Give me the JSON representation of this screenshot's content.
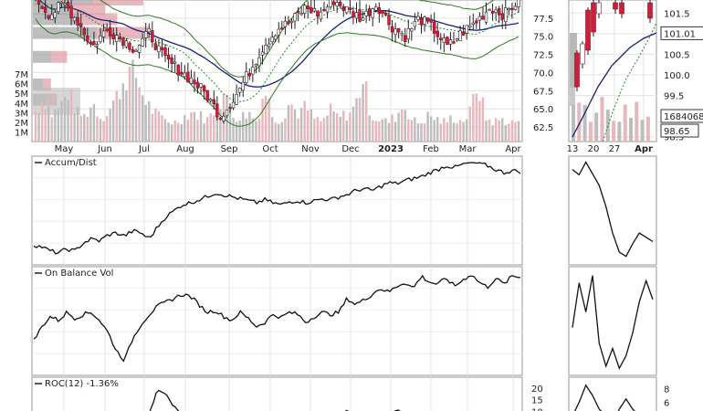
{
  "chart_data": [
    {
      "type": "candlestick",
      "panel": "price",
      "y_ticks": [
        62.5,
        65.0,
        67.5,
        70.0,
        72.5,
        75.0,
        77.5
      ],
      "ylim": [
        60.5,
        80.0
      ],
      "volume_ticks": [
        "1M",
        "2M",
        "3M",
        "4M",
        "5M",
        "6M",
        "7M"
      ],
      "volume_ylim": [
        0,
        9
      ],
      "x_ticks": [
        "May",
        "Jun",
        "Jul",
        "Aug",
        "Sep",
        "Oct",
        "Nov",
        "Dec",
        "2023",
        "Feb",
        "Mar",
        "Apr"
      ],
      "closes": [
        80.2,
        78.0,
        79.5,
        77.0,
        73.5,
        76.0,
        74.8,
        73.2,
        75.5,
        72.0,
        70.5,
        69.0,
        67.0,
        64.0,
        66.5,
        70.0,
        73.5,
        76.0,
        77.0,
        79.0,
        78.0,
        80.0,
        78.5,
        77.5,
        79.5,
        76.5,
        75.0,
        77.5,
        76.0,
        73.5,
        75.5,
        77.0,
        79.0,
        78.0,
        80.0
      ],
      "volume_millions": [
        3.2,
        4.5,
        2.8,
        3.6,
        5.2,
        3.0,
        2.6,
        4.0,
        2.4,
        3.3,
        4.8,
        6.8,
        7.5,
        5.0,
        3.5,
        2.6,
        2.2,
        2.0,
        2.5,
        3.1,
        2.7,
        2.3,
        3.4,
        4.9,
        2.8,
        2.5,
        3.0,
        2.1,
        5.5,
        2.6,
        2.2,
        4.1,
        2.9,
        3.6,
        2.4,
        2.0,
        3.2,
        2.5,
        2.8,
        3.5,
        6.6,
        2.7,
        2.3,
        2.0,
        2.6,
        3.8,
        2.2,
        1.9,
        2.7,
        2.3,
        2.0,
        2.5,
        2.1,
        2.8,
        6.1,
        2.4,
        2.0,
        2.3,
        1.9,
        2.2
      ],
      "volume_by_price_millions": [
        5.5,
        3.6,
        4.2,
        5.8,
        1.7,
        0.9,
        1.2
      ]
    },
    {
      "type": "candlestick",
      "panel": "price-detail",
      "y_ticks": [
        "101.5",
        "101.01",
        "101.0",
        "100.5",
        "100.0",
        "99.5",
        "98.65",
        "98.5"
      ],
      "x_ticks": [
        "13",
        "20",
        "27",
        "Apr"
      ],
      "last_price": "101.01",
      "volume_label": "1684068",
      "ma_value": "98.65"
    },
    {
      "type": "line",
      "panel": "indicator",
      "title": "Accum/Dist",
      "values": [
        0.18,
        0.16,
        0.12,
        0.1,
        0.14,
        0.12,
        0.2,
        0.24,
        0.22,
        0.28,
        0.3,
        0.27,
        0.32,
        0.3,
        0.24,
        0.36,
        0.46,
        0.52,
        0.58,
        0.6,
        0.63,
        0.66,
        0.7,
        0.68,
        0.66,
        0.64,
        0.62,
        0.6,
        0.63,
        0.6,
        0.58,
        0.61,
        0.62,
        0.6,
        0.62,
        0.64,
        0.63,
        0.66,
        0.68,
        0.72,
        0.74,
        0.72,
        0.76,
        0.8,
        0.79,
        0.82,
        0.84,
        0.86,
        0.9,
        0.93,
        0.97,
        0.95,
        0.98,
        1.0,
        0.99,
        0.97,
        0.93,
        0.9,
        0.92,
        0.91
      ]
    },
    {
      "type": "line",
      "panel": "indicator-detail",
      "values": [
        0.9,
        0.85,
        0.97,
        0.86,
        0.75,
        0.55,
        0.3,
        0.12,
        0.08,
        0.2,
        0.3,
        0.26,
        0.22
      ]
    },
    {
      "type": "line",
      "panel": "indicator",
      "title": "On Balance Vol",
      "values": [
        0.32,
        0.46,
        0.56,
        0.52,
        0.6,
        0.54,
        0.58,
        0.6,
        0.52,
        0.4,
        0.22,
        0.12,
        0.34,
        0.48,
        0.58,
        0.66,
        0.7,
        0.74,
        0.78,
        0.76,
        0.68,
        0.6,
        0.62,
        0.56,
        0.52,
        0.6,
        0.54,
        0.46,
        0.5,
        0.58,
        0.55,
        0.6,
        0.58,
        0.5,
        0.56,
        0.6,
        0.58,
        0.6,
        0.74,
        0.68,
        0.72,
        0.78,
        0.84,
        0.8,
        0.86,
        0.9,
        0.84,
        0.96,
        0.9,
        0.88,
        0.94,
        0.86,
        0.92,
        0.98,
        0.9,
        0.85,
        0.94,
        0.88,
        0.96,
        0.95
      ]
    },
    {
      "type": "line",
      "panel": "indicator-detail",
      "values": [
        0.45,
        0.88,
        0.6,
        0.95,
        0.3,
        0.08,
        0.25,
        0.06,
        0.18,
        0.4,
        0.7,
        0.9,
        0.72
      ]
    },
    {
      "type": "line",
      "panel": "indicator",
      "title": "ROC(12) -1.36%",
      "y_ticks": [
        "20",
        "15",
        "10"
      ],
      "ylim": [
        5,
        22
      ],
      "values": [
        3,
        4,
        2,
        5,
        3,
        4,
        6,
        3,
        2,
        4,
        6,
        8,
        5,
        4,
        9,
        19.5,
        18,
        12,
        8,
        5,
        4,
        3,
        5,
        4,
        3,
        2,
        4,
        3,
        2,
        3,
        4,
        6,
        7,
        5,
        4,
        3,
        6,
        8,
        10,
        9,
        7,
        5,
        6,
        8,
        10.5,
        8,
        6,
        5,
        4,
        6,
        7,
        5,
        6,
        8,
        6,
        5,
        4,
        3,
        4,
        3
      ]
    },
    {
      "type": "line",
      "panel": "indicator-detail",
      "y_ticks": [
        "8",
        "6"
      ],
      "values": [
        4,
        6,
        8.5,
        7,
        5,
        4,
        3,
        5,
        6.5,
        5,
        4,
        3,
        3
      ]
    }
  ]
}
